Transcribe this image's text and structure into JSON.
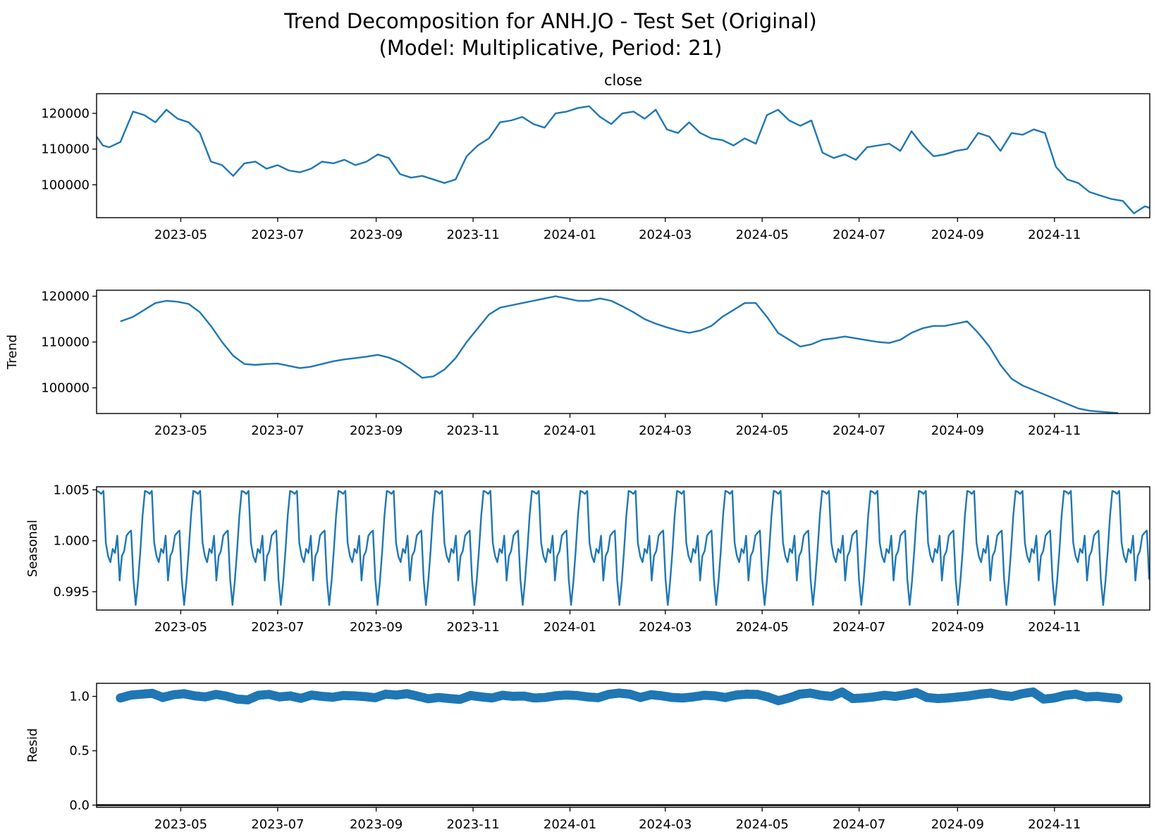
{
  "figure": {
    "title_line1": "Trend Decomposition for ANH.JO - Test Set (Original)",
    "title_line2": "(Model: Multiplicative, Period: 21)"
  },
  "colors": {
    "line": "#1f77b4",
    "axis": "#000000",
    "background": "#ffffff"
  },
  "chart_data": [
    {
      "type": "line",
      "title": "close",
      "ylabel": "",
      "xlim": [
        "2023-03-09",
        "2024-12-31"
      ],
      "ylim": [
        90800,
        125500
      ],
      "yticks": [
        100000,
        110000,
        120000
      ],
      "ytick_labels": [
        "100000",
        "110000",
        "120000"
      ],
      "xticks": [
        "2023-05-01",
        "2023-07-01",
        "2023-09-01",
        "2023-11-01",
        "2024-01-01",
        "2024-03-01",
        "2024-05-01",
        "2024-07-01",
        "2024-09-01",
        "2024-11-01"
      ],
      "xtick_labels": [
        "2023-05",
        "2023-07",
        "2023-09",
        "2023-11",
        "2024-01",
        "2024-03",
        "2024-05",
        "2024-07",
        "2024-09",
        "2024-11"
      ],
      "x": [
        "2023-03-09",
        "2023-03-13",
        "2023-03-17",
        "2023-03-24",
        "2023-04-01",
        "2023-04-08",
        "2023-04-15",
        "2023-04-22",
        "2023-04-29",
        "2023-05-06",
        "2023-05-13",
        "2023-05-20",
        "2023-05-27",
        "2023-06-03",
        "2023-06-10",
        "2023-06-17",
        "2023-06-24",
        "2023-07-01",
        "2023-07-08",
        "2023-07-15",
        "2023-07-22",
        "2023-07-29",
        "2023-08-05",
        "2023-08-12",
        "2023-08-19",
        "2023-08-26",
        "2023-09-02",
        "2023-09-09",
        "2023-09-16",
        "2023-09-23",
        "2023-09-30",
        "2023-10-07",
        "2023-10-14",
        "2023-10-21",
        "2023-10-28",
        "2023-11-04",
        "2023-11-11",
        "2023-11-18",
        "2023-11-25",
        "2023-12-02",
        "2023-12-09",
        "2023-12-16",
        "2023-12-23",
        "2023-12-30",
        "2024-01-06",
        "2024-01-13",
        "2024-01-20",
        "2024-01-27",
        "2024-02-03",
        "2024-02-10",
        "2024-02-17",
        "2024-02-24",
        "2024-03-02",
        "2024-03-09",
        "2024-03-16",
        "2024-03-23",
        "2024-03-30",
        "2024-04-06",
        "2024-04-13",
        "2024-04-20",
        "2024-04-27",
        "2024-05-04",
        "2024-05-11",
        "2024-05-18",
        "2024-05-25",
        "2024-06-01",
        "2024-06-08",
        "2024-06-15",
        "2024-06-22",
        "2024-06-29",
        "2024-07-06",
        "2024-07-13",
        "2024-07-20",
        "2024-07-27",
        "2024-08-03",
        "2024-08-10",
        "2024-08-17",
        "2024-08-24",
        "2024-08-31",
        "2024-09-07",
        "2024-09-14",
        "2024-09-21",
        "2024-09-28",
        "2024-10-05",
        "2024-10-12",
        "2024-10-19",
        "2024-10-26",
        "2024-11-02",
        "2024-11-09",
        "2024-11-16",
        "2024-11-23",
        "2024-11-30",
        "2024-12-07",
        "2024-12-14",
        "2024-12-21",
        "2024-12-28",
        "2024-12-31"
      ],
      "y": [
        113500,
        111000,
        110500,
        112000,
        120500,
        119500,
        117500,
        121000,
        118500,
        117500,
        114500,
        106500,
        105500,
        102500,
        106000,
        106500,
        104500,
        105500,
        104000,
        103500,
        104500,
        106500,
        106000,
        107000,
        105500,
        106500,
        108500,
        107500,
        103000,
        102000,
        102500,
        101500,
        100500,
        101500,
        108000,
        111000,
        113000,
        117500,
        118000,
        119000,
        117000,
        116000,
        120000,
        120500,
        121500,
        122000,
        119000,
        117000,
        120000,
        120500,
        118500,
        121000,
        115500,
        114500,
        117500,
        114500,
        113000,
        112500,
        111000,
        113000,
        111500,
        119500,
        121000,
        118000,
        116500,
        118000,
        109000,
        107500,
        108500,
        107000,
        110500,
        111000,
        111500,
        109500,
        115000,
        111000,
        108000,
        108500,
        109500,
        110000,
        114500,
        113500,
        109500,
        114500,
        114000,
        115500,
        114500,
        105000,
        101500,
        100500,
        98000,
        97000,
        96000,
        95500,
        92000,
        94000,
        93500
      ]
    },
    {
      "type": "line",
      "title": "",
      "ylabel": "Trend",
      "xlim": [
        "2023-03-09",
        "2024-12-31"
      ],
      "ylim": [
        94400,
        121300
      ],
      "yticks": [
        100000,
        110000,
        120000
      ],
      "ytick_labels": [
        "100000",
        "110000",
        "120000"
      ],
      "xticks": [
        "2023-05-01",
        "2023-07-01",
        "2023-09-01",
        "2023-11-01",
        "2024-01-01",
        "2024-03-01",
        "2024-05-01",
        "2024-07-01",
        "2024-09-01",
        "2024-11-01"
      ],
      "xtick_labels": [
        "2023-05",
        "2023-07",
        "2023-09",
        "2023-11",
        "2024-01",
        "2024-03",
        "2024-05",
        "2024-07",
        "2024-09",
        "2024-11"
      ],
      "x": [
        "2023-03-24",
        "2023-04-01",
        "2023-04-08",
        "2023-04-15",
        "2023-04-22",
        "2023-04-29",
        "2023-05-06",
        "2023-05-13",
        "2023-05-20",
        "2023-05-27",
        "2023-06-03",
        "2023-06-10",
        "2023-06-17",
        "2023-06-24",
        "2023-07-01",
        "2023-07-08",
        "2023-07-15",
        "2023-07-22",
        "2023-07-29",
        "2023-08-05",
        "2023-08-12",
        "2023-08-19",
        "2023-08-26",
        "2023-09-02",
        "2023-09-09",
        "2023-09-16",
        "2023-09-23",
        "2023-09-30",
        "2023-10-07",
        "2023-10-14",
        "2023-10-21",
        "2023-10-28",
        "2023-11-04",
        "2023-11-11",
        "2023-11-18",
        "2023-11-25",
        "2023-12-02",
        "2023-12-09",
        "2023-12-16",
        "2023-12-23",
        "2023-12-30",
        "2024-01-06",
        "2024-01-13",
        "2024-01-20",
        "2024-01-27",
        "2024-02-03",
        "2024-02-10",
        "2024-02-17",
        "2024-02-24",
        "2024-03-02",
        "2024-03-09",
        "2024-03-16",
        "2024-03-23",
        "2024-03-30",
        "2024-04-06",
        "2024-04-13",
        "2024-04-20",
        "2024-04-27",
        "2024-05-04",
        "2024-05-11",
        "2024-05-18",
        "2024-05-25",
        "2024-06-01",
        "2024-06-08",
        "2024-06-15",
        "2024-06-22",
        "2024-06-29",
        "2024-07-06",
        "2024-07-13",
        "2024-07-20",
        "2024-07-27",
        "2024-08-03",
        "2024-08-10",
        "2024-08-17",
        "2024-08-24",
        "2024-08-31",
        "2024-09-07",
        "2024-09-14",
        "2024-09-21",
        "2024-09-28",
        "2024-10-05",
        "2024-10-12",
        "2024-10-19",
        "2024-10-26",
        "2024-11-02",
        "2024-11-09",
        "2024-11-16",
        "2024-11-23",
        "2024-11-30",
        "2024-12-07",
        "2024-12-11"
      ],
      "y": [
        114500,
        115500,
        117000,
        118500,
        119000,
        118800,
        118300,
        116500,
        113500,
        110000,
        107000,
        105200,
        105000,
        105200,
        105300,
        104800,
        104300,
        104600,
        105200,
        105800,
        106200,
        106500,
        106800,
        107200,
        106600,
        105600,
        104000,
        102200,
        102500,
        104000,
        106500,
        110000,
        113000,
        116000,
        117500,
        118000,
        118500,
        119000,
        119500,
        120000,
        119500,
        119000,
        119000,
        119500,
        119000,
        117800,
        116500,
        115000,
        114000,
        113200,
        112500,
        112000,
        112500,
        113500,
        115500,
        117000,
        118500,
        118500,
        115500,
        112000,
        110500,
        109000,
        109500,
        110500,
        110800,
        111200,
        110800,
        110400,
        110000,
        109800,
        110500,
        112000,
        113000,
        113500,
        113500,
        114000,
        114500,
        112000,
        109000,
        105000,
        102000,
        100500,
        99500,
        98500,
        97500,
        96500,
        95500,
        95000,
        94800,
        94600,
        94500
      ]
    },
    {
      "type": "line",
      "title": "",
      "ylabel": "Seasonal",
      "xlim": [
        "2023-03-09",
        "2024-12-31"
      ],
      "ylim": [
        0.9932,
        1.0053
      ],
      "yticks": [
        0.995,
        1.0,
        1.005
      ],
      "ytick_labels": [
        "0.995",
        "1.000",
        "1.005"
      ],
      "xticks": [
        "2023-05-01",
        "2023-07-01",
        "2023-09-01",
        "2023-11-01",
        "2024-01-01",
        "2024-03-01",
        "2024-05-01",
        "2024-07-01",
        "2024-09-01",
        "2024-11-01"
      ],
      "xtick_labels": [
        "2023-05",
        "2023-07",
        "2023-09",
        "2023-11",
        "2024-01",
        "2024-03",
        "2024-05",
        "2024-07",
        "2024-09",
        "2024-11"
      ],
      "period": 21,
      "cycle_start": "2023-03-09",
      "seasonal_pattern": [
        1.0049,
        1.0048,
        1.0046,
        1.0049,
        0.9998,
        0.9985,
        0.9979,
        0.9992,
        0.9988,
        1.0005,
        0.9961,
        0.9985,
        0.999,
        1.0005,
        1.0008,
        1.001,
        0.9962,
        0.9937,
        0.996,
        0.999,
        1.0025
      ]
    },
    {
      "type": "scatter",
      "title": "",
      "ylabel": "Resid",
      "xlim": [
        "2023-03-09",
        "2024-12-31"
      ],
      "ylim": [
        -0.02,
        1.12
      ],
      "yticks": [
        0.0,
        0.5,
        1.0
      ],
      "ytick_labels": [
        "0.0",
        "0.5",
        "1.0"
      ],
      "xticks": [
        "2023-05-01",
        "2023-07-01",
        "2023-09-01",
        "2023-11-01",
        "2024-01-01",
        "2024-03-01",
        "2024-05-01",
        "2024-07-01",
        "2024-09-01",
        "2024-11-01"
      ],
      "xtick_labels": [
        "2023-05",
        "2023-07",
        "2023-09",
        "2023-11",
        "2024-01",
        "2024-03",
        "2024-05",
        "2024-07",
        "2024-09",
        "2024-11"
      ],
      "baseline": 0.0,
      "x_start": "2023-03-24",
      "x_end": "2024-12-11",
      "values": [
        0.985,
        1.012,
        1.02,
        1.028,
        0.99,
        1.015,
        1.024,
        1.005,
        0.995,
        1.018,
        1.002,
        0.975,
        0.968,
        1.01,
        1.018,
        0.995,
        1.004,
        0.982,
        1.012,
        1.0,
        0.992,
        1.008,
        1.005,
        0.998,
        0.988,
        1.02,
        1.012,
        1.025,
        1.002,
        0.978,
        0.99,
        0.98,
        0.972,
        1.008,
        0.995,
        0.985,
        1.01,
        1.0,
        1.003,
        0.985,
        0.99,
        1.005,
        1.012,
        1.008,
        0.995,
        0.988,
        1.018,
        1.03,
        1.02,
        0.99,
        1.015,
        1.005,
        0.99,
        0.985,
        0.995,
        1.01,
        1.005,
        0.99,
        1.012,
        1.02,
        1.018,
        0.995,
        0.96,
        0.985,
        1.02,
        1.03,
        1.01,
        1.0,
        1.04,
        0.98,
        0.985,
        0.995,
        1.01,
        1.0,
        1.015,
        1.035,
        0.99,
        0.98,
        0.985,
        0.995,
        1.005,
        1.02,
        1.03,
        1.01,
        1.0,
        1.025,
        1.04,
        0.975,
        0.985,
        1.01,
        1.02,
        0.995,
        1.0,
        0.99,
        0.98
      ]
    }
  ]
}
